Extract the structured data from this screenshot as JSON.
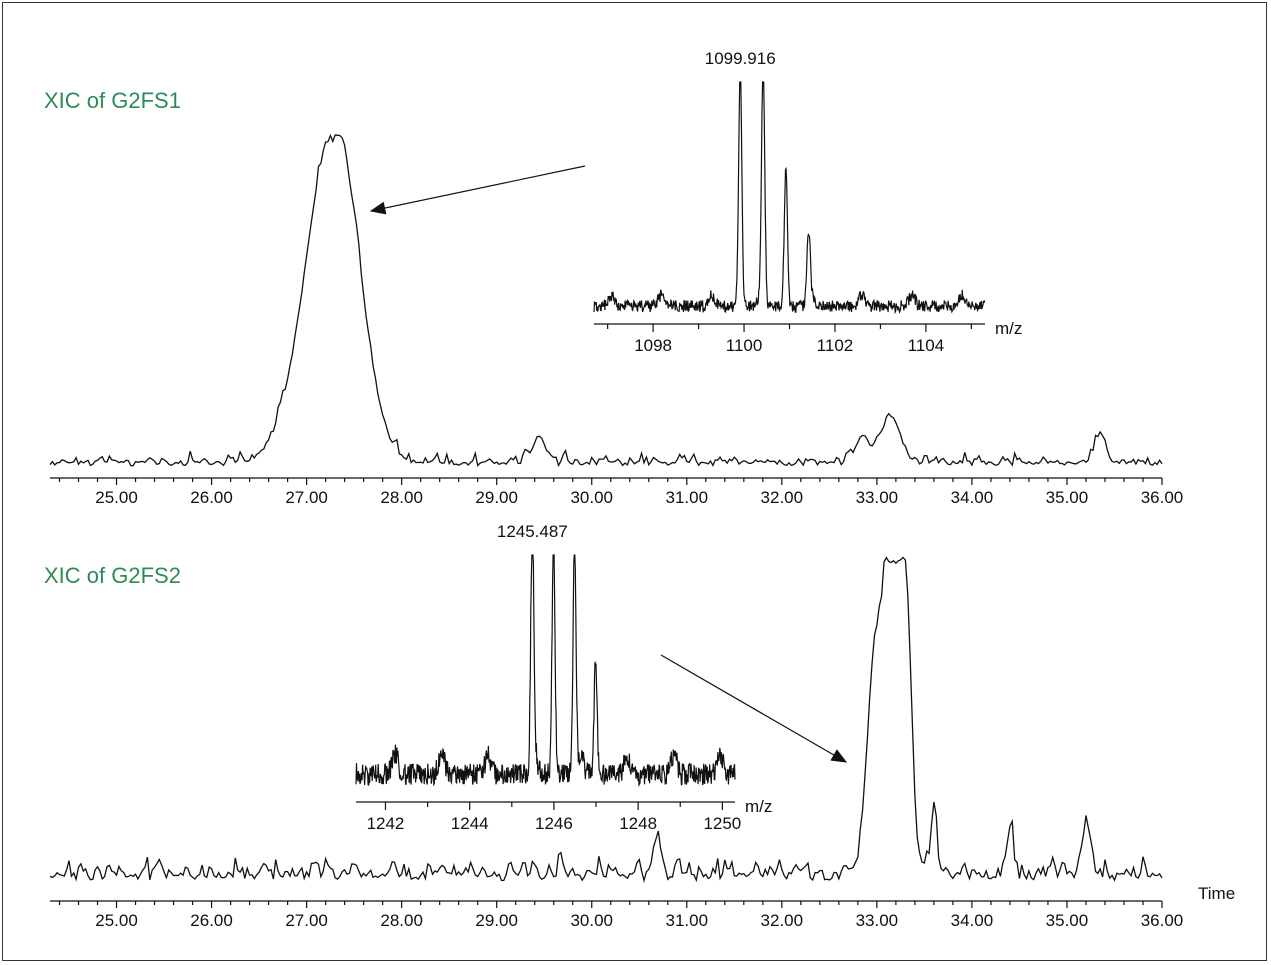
{
  "colors": {
    "trace_title": "#2e8b57",
    "line": "#111111",
    "frame": "#333333"
  },
  "chart_data": [
    {
      "type": "line",
      "title": "XIC of G2FS1",
      "xlabel": "",
      "xlim": [
        24.3,
        36.0
      ],
      "ylim": [
        0,
        100
      ],
      "x_tick_labels": [
        "25.00",
        "26.00",
        "27.00",
        "28.00",
        "29.00",
        "30.00",
        "31.00",
        "32.00",
        "33.00",
        "34.00",
        "35.00",
        "36.00"
      ],
      "grid": false,
      "noise_level": 4,
      "peaks": [
        {
          "rt": 27.3,
          "height": 100,
          "width": 0.3,
          "note": "main peak"
        },
        {
          "rt": 33.15,
          "height": 13,
          "width": 0.12
        },
        {
          "rt": 35.35,
          "height": 9,
          "width": 0.06
        },
        {
          "rt": 29.45,
          "height": 8,
          "width": 0.07
        },
        {
          "rt": 32.85,
          "height": 7,
          "width": 0.08
        }
      ],
      "inset": {
        "type": "line",
        "xlabel": "m/z",
        "xlim": [
          1096.7,
          1105.3
        ],
        "ylim": [
          0,
          100
        ],
        "x_tick_labels": [
          "1098",
          "1100",
          "1102",
          "1104"
        ],
        "peak_label": "1099.916",
        "peaks": [
          {
            "mz": 1099.916,
            "height": 100
          },
          {
            "mz": 1100.42,
            "height": 98
          },
          {
            "mz": 1100.92,
            "height": 58
          },
          {
            "mz": 1101.42,
            "height": 29
          }
        ]
      }
    },
    {
      "type": "line",
      "title": "XIC of G2FS2",
      "xlabel": "Time",
      "xlim": [
        24.3,
        36.0
      ],
      "ylim": [
        0,
        100
      ],
      "x_tick_labels": [
        "25.00",
        "26.00",
        "27.00",
        "28.00",
        "29.00",
        "30.00",
        "31.00",
        "32.00",
        "33.00",
        "34.00",
        "35.00",
        "36.00"
      ],
      "grid": false,
      "noise_level": 8,
      "peaks": [
        {
          "rt": 33.15,
          "height": 100,
          "width": 0.13
        },
        {
          "rt": 32.95,
          "height": 32,
          "width": 0.07
        },
        {
          "rt": 33.32,
          "height": 55,
          "width": 0.06
        },
        {
          "rt": 33.6,
          "height": 16,
          "width": 0.04
        },
        {
          "rt": 35.2,
          "height": 15,
          "width": 0.04
        },
        {
          "rt": 30.7,
          "height": 12,
          "width": 0.04
        },
        {
          "rt": 34.4,
          "height": 12,
          "width": 0.04
        }
      ],
      "inset": {
        "type": "line",
        "xlabel": "m/z",
        "xlim": [
          1241.3,
          1250.3
        ],
        "ylim": [
          0,
          100
        ],
        "x_tick_labels": [
          "1242",
          "1244",
          "1246",
          "1248",
          "1250"
        ],
        "peak_label": "1245.487",
        "peaks": [
          {
            "mz": 1245.487,
            "height": 100
          },
          {
            "mz": 1245.99,
            "height": 100
          },
          {
            "mz": 1246.49,
            "height": 100
          },
          {
            "mz": 1246.99,
            "height": 48
          }
        ]
      }
    }
  ]
}
